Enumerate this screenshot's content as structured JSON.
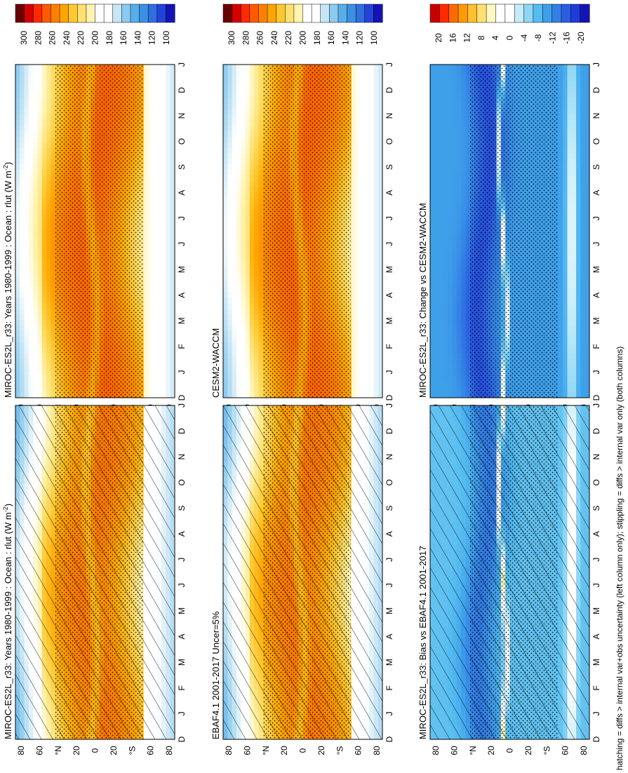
{
  "figure": {
    "footnote": "hatching = diffs > internal var+obs uncertainty (left column only); stippling = diffs > internal var only (both columns)"
  },
  "colors": {
    "abs_scale": [
      "#6a0000",
      "#d40000",
      "#ff2a00",
      "#ff5a00",
      "#ff8000",
      "#ffa500",
      "#ffc830",
      "#ffe070",
      "#fff3b0",
      "#ffffff",
      "#ffffff",
      "#c6e6f5",
      "#8ccbef",
      "#58aee8",
      "#3c8fe3",
      "#2f6fe0",
      "#2343d8",
      "#1414b4"
    ],
    "diff_scale": [
      "#c80000",
      "#ff2a00",
      "#ff6a00",
      "#ff9a00",
      "#ffc030",
      "#ffe070",
      "#fff8c0",
      "#ffffff",
      "#ffffff",
      "#c6ecfa",
      "#8ed6f5",
      "#56bdf0",
      "#3fa0ea",
      "#3380e4",
      "#2a5ee0",
      "#1f3cd8",
      "#1414b4"
    ],
    "zero": "#ffffff"
  },
  "chart_data": [
    {
      "id": "p1",
      "type": "heatmap",
      "title": "MIROC-ES2L_r33: Years 1980-1999 : Ocean : rlut (W m",
      "title_sup": "-2",
      "title_end": ")",
      "months": [
        "D",
        "J",
        "F",
        "M",
        "A",
        "M",
        "J",
        "J",
        "A",
        "S",
        "O",
        "N",
        "D",
        "J"
      ],
      "lat_ticks": [
        "80",
        "60",
        "°N",
        "20",
        "0",
        "20",
        "°S",
        "60",
        "80"
      ],
      "scale": "abs",
      "colorbar_ticks": [
        "300",
        "280",
        "260",
        "240",
        "220",
        "200",
        "180",
        "160",
        "140",
        "120",
        "100"
      ],
      "hatching": true,
      "stippling": true
    },
    {
      "id": "p2",
      "type": "heatmap",
      "title": "MIROC-ES2L_r33: Years 1980-1999 : Ocean : rlut (W m",
      "title_sup": "-2",
      "title_end": ")",
      "months": [
        "D",
        "J",
        "F",
        "M",
        "A",
        "M",
        "J",
        "J",
        "A",
        "S",
        "O",
        "N",
        "D",
        "J"
      ],
      "lat_ticks": [
        "80",
        "60",
        "°N",
        "20",
        "0",
        "20",
        "°S",
        "60",
        "80"
      ],
      "scale": "abs",
      "colorbar_ticks": [
        "300",
        "280",
        "260",
        "240",
        "220",
        "200",
        "180",
        "160",
        "140",
        "120",
        "100"
      ],
      "hatching": false,
      "stippling": true
    },
    {
      "id": "p3",
      "type": "heatmap",
      "title": "EBAF4.1 2001-2017 Uncer=5%",
      "months": [
        "D",
        "J",
        "F",
        "M",
        "A",
        "M",
        "J",
        "J",
        "A",
        "S",
        "O",
        "N",
        "D",
        "J"
      ],
      "lat_ticks": [
        "80",
        "60",
        "°N",
        "20",
        "0",
        "20",
        "°S",
        "60",
        "80"
      ],
      "scale": "abs",
      "colorbar_ticks": [
        "300",
        "280",
        "260",
        "240",
        "220",
        "200",
        "180",
        "160",
        "140",
        "120",
        "100"
      ],
      "hatching": true,
      "stippling": true
    },
    {
      "id": "p4",
      "type": "heatmap",
      "title": "CESM2-WACCM",
      "months": [
        "D",
        "J",
        "F",
        "M",
        "A",
        "M",
        "J",
        "J",
        "A",
        "S",
        "O",
        "N",
        "D",
        "J"
      ],
      "lat_ticks": [
        "80",
        "60",
        "°N",
        "20",
        "0",
        "20",
        "°S",
        "60",
        "80"
      ],
      "scale": "abs",
      "colorbar_ticks": [
        "300",
        "280",
        "260",
        "240",
        "220",
        "200",
        "180",
        "160",
        "140",
        "120",
        "100"
      ],
      "hatching": false,
      "stippling": true
    },
    {
      "id": "p5",
      "type": "heatmap",
      "title": "MIROC-ES2L_r33: Bias vs EBAF4.1 2001-2017",
      "months": [
        "D",
        "J",
        "F",
        "M",
        "A",
        "M",
        "J",
        "J",
        "A",
        "S",
        "O",
        "N",
        "D",
        "J"
      ],
      "lat_ticks": [
        "80",
        "60",
        "°N",
        "20",
        "0",
        "20",
        "°S",
        "60",
        "80"
      ],
      "scale": "diff",
      "colorbar_ticks": [
        "20",
        "16",
        "12",
        "8",
        "4",
        "0",
        "-4",
        "-8",
        "-12",
        "-16",
        "-20"
      ],
      "hatching": true,
      "stippling": true
    },
    {
      "id": "p6",
      "type": "heatmap",
      "title": "MIROC-ES2L_r33: Change vs CESM2-WACCM",
      "months": [
        "D",
        "J",
        "F",
        "M",
        "A",
        "M",
        "J",
        "J",
        "A",
        "S",
        "O",
        "N",
        "D",
        "J"
      ],
      "lat_ticks": [
        "80",
        "60",
        "°N",
        "20",
        "0",
        "20",
        "°S",
        "60",
        "80"
      ],
      "scale": "diff",
      "colorbar_ticks": [
        "20",
        "16",
        "12",
        "8",
        "4",
        "0",
        "-4",
        "-8",
        "-12",
        "-16",
        "-20"
      ],
      "hatching": false,
      "stippling": true
    }
  ]
}
